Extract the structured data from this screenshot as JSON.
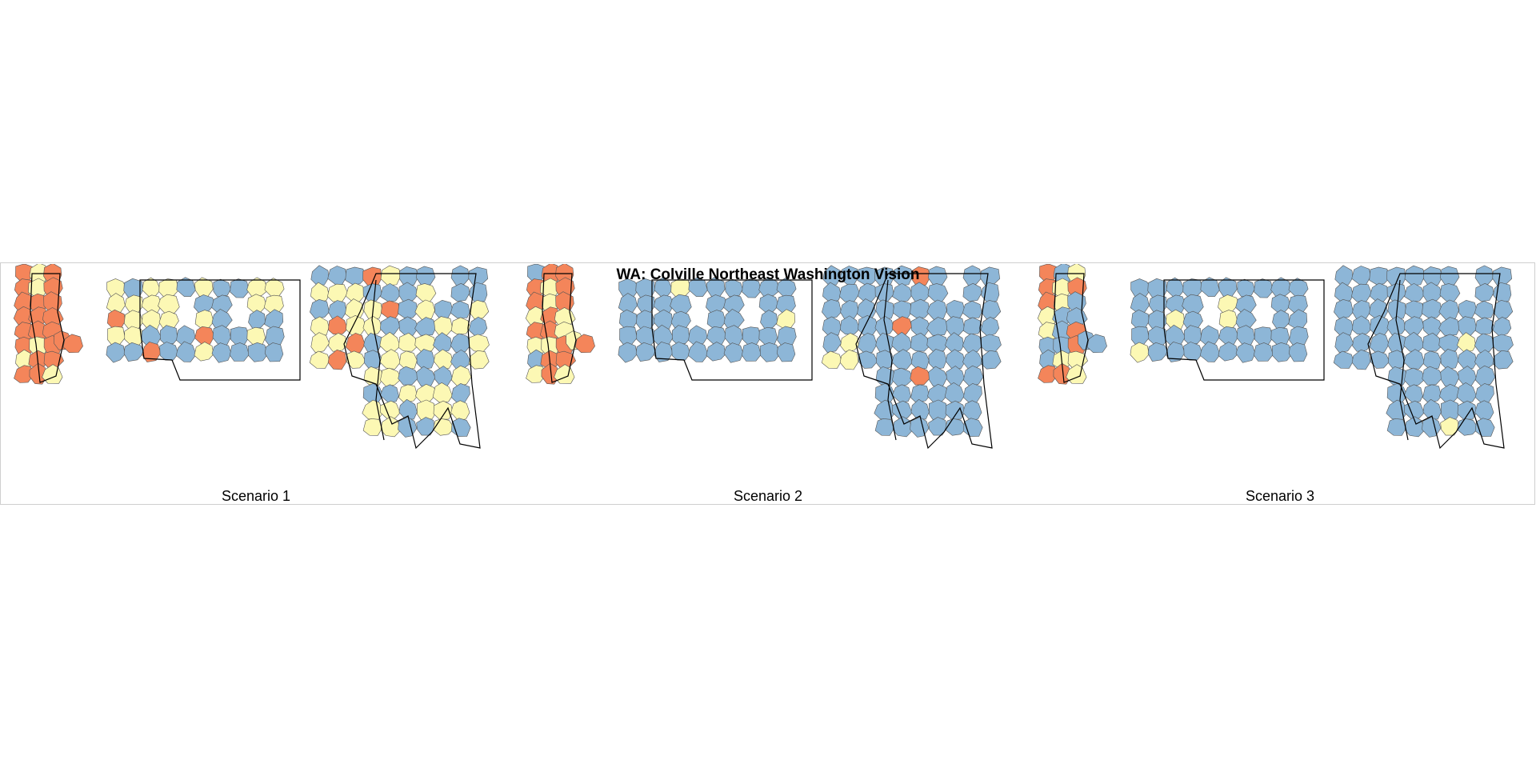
{
  "title": "WA: Colville Northeast Washington Vision",
  "colors": {
    "high": "#f4855a",
    "medium": "#fcf8b4",
    "low": "#8db6d7",
    "boundary": "#000000",
    "unit_edge": "#555555"
  },
  "panels": [
    {
      "label": "Scenario 1",
      "pattern": "s1"
    },
    {
      "label": "Scenario 2",
      "pattern": "s2"
    },
    {
      "label": "Scenario 3",
      "pattern": "s3"
    }
  ]
}
